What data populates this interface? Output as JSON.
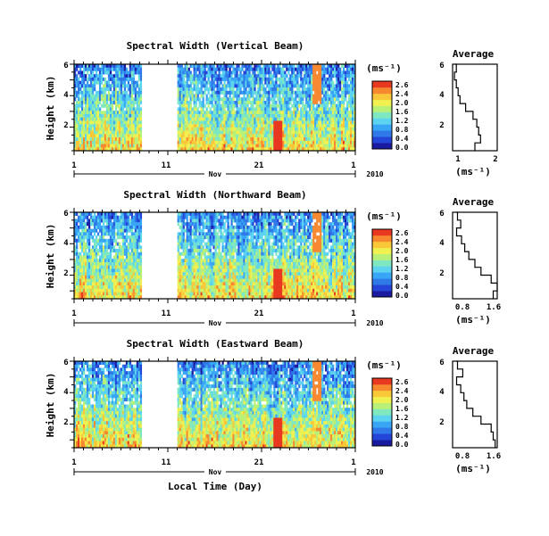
{
  "colorbar": {
    "unit": "(ms⁻¹)",
    "ticks": [
      "2.6",
      "2.4",
      "2.0",
      "1.6",
      "1.2",
      "0.8",
      "0.4",
      "0.0"
    ]
  },
  "colors": {
    "colormap": [
      "#1a1aa0",
      "#2446d8",
      "#2f7ae8",
      "#39a6f5",
      "#5cd4f0",
      "#7fe8c0",
      "#b8f078",
      "#f0f050",
      "#f8c838",
      "#f88830",
      "#e83820"
    ],
    "missing": "#ffffff"
  },
  "shared": {
    "xlabel": "Local Time (Day)",
    "month_label": "Nov",
    "year_label": "2010",
    "day_ticks": [
      "1",
      "11",
      "21",
      "1"
    ],
    "ylabel": "Height (km)",
    "height_ticks": [
      "6",
      "4",
      "2"
    ],
    "avg_title": "Average",
    "avg_xlabel": "(ms⁻¹)",
    "avg_height_ticks": [
      "6",
      "4",
      "2"
    ]
  },
  "chart_data": [
    {
      "type": "heatmap",
      "title": "Spectral Width (Vertical Beam)",
      "x": "day of month (Nov 2010)",
      "xlim": [
        1,
        31
      ],
      "ylim": [
        0.5,
        6
      ],
      "zlim": [
        0.0,
        2.8
      ],
      "missing_days": [
        [
          8.2,
          12.0
        ]
      ],
      "profile": {
        "title": "Average",
        "xlim": [
          0.8,
          2.0
        ],
        "xticks": [
          "1",
          "2"
        ],
        "height_km": [
          0.5,
          1.0,
          1.5,
          2.0,
          2.5,
          3.0,
          3.5,
          4.0,
          4.5,
          5.0,
          5.5,
          6.0
        ],
        "values": [
          1.4,
          1.55,
          1.5,
          1.45,
          1.35,
          1.15,
          1.0,
          0.95,
          0.9,
          0.85,
          0.9,
          0.88
        ]
      }
    },
    {
      "type": "heatmap",
      "title": "Spectral Width (Northward Beam)",
      "x": "day of month (Nov 2010)",
      "xlim": [
        1,
        31
      ],
      "ylim": [
        0.5,
        6
      ],
      "zlim": [
        0.0,
        2.8
      ],
      "missing_days": [
        [
          8.2,
          12.0
        ]
      ],
      "profile": {
        "title": "Average",
        "xlim": [
          0.5,
          1.6
        ],
        "xticks": [
          "0.8",
          "1.6"
        ],
        "height_km": [
          0.5,
          1.0,
          1.5,
          2.0,
          2.5,
          3.0,
          3.5,
          4.0,
          4.5,
          5.0,
          5.5,
          6.0
        ],
        "values": [
          1.5,
          1.6,
          1.45,
          1.2,
          1.05,
          0.9,
          0.8,
          0.72,
          0.6,
          0.7,
          0.62,
          0.6
        ]
      }
    },
    {
      "type": "heatmap",
      "title": "Spectral Width (Eastward Beam)",
      "x": "day of month (Nov 2010)",
      "xlim": [
        1,
        31
      ],
      "ylim": [
        0.5,
        6
      ],
      "zlim": [
        0.0,
        2.8
      ],
      "missing_days": [
        [
          8.2,
          12.0
        ]
      ],
      "profile": {
        "title": "Average",
        "xlim": [
          0.5,
          1.6
        ],
        "xticks": [
          "0.8",
          "1.6"
        ],
        "height_km": [
          0.5,
          1.0,
          1.5,
          2.0,
          2.5,
          3.0,
          3.5,
          4.0,
          4.5,
          5.0,
          5.5,
          6.0
        ],
        "values": [
          1.55,
          1.5,
          1.45,
          1.2,
          1.0,
          0.85,
          0.78,
          0.7,
          0.6,
          0.75,
          0.62,
          0.6
        ]
      }
    }
  ]
}
